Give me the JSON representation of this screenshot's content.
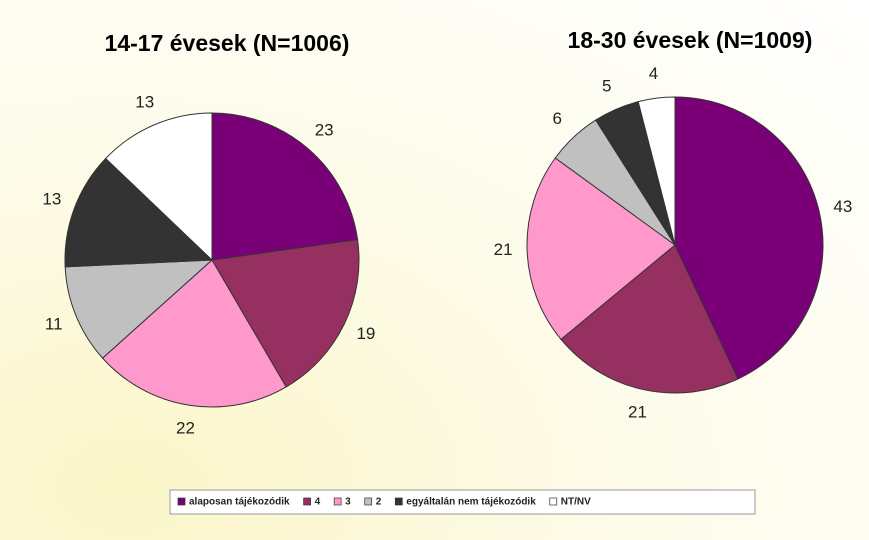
{
  "chart_data": [
    {
      "type": "pie",
      "title": "14-17 évesek (N=1006)",
      "values": [
        23,
        19,
        22,
        11,
        13,
        13
      ]
    },
    {
      "type": "pie",
      "title": "18-30 évesek (N=1009)",
      "values": [
        43,
        21,
        21,
        6,
        5,
        4
      ]
    }
  ],
  "legend": {
    "labels": [
      "alaposan tájékozódik",
      "4",
      "3",
      "2",
      "egyáltalán nem tájékozódik",
      "NT/NV"
    ],
    "colors": [
      "#7a0078",
      "#963060",
      "#ff99cc",
      "#c0c0c0",
      "#333333",
      "#ffffff"
    ]
  }
}
